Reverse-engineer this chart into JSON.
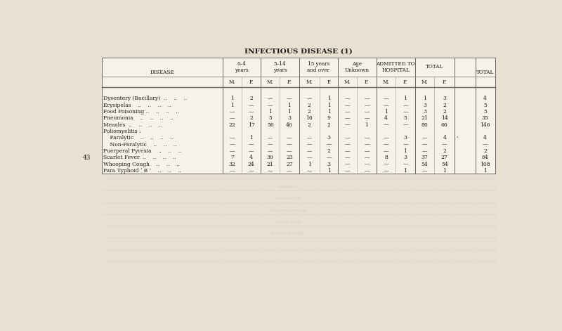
{
  "title": "INFECTIOUS DISEASE (1)",
  "page_number": "43",
  "bg_color": "#e8e0d0",
  "table_bg": "#f7f2e8",
  "col_headers_row1": [
    "DISEASE",
    "0–4\nyears",
    "5–14\nyears",
    "15 years\nand over",
    "Age\nUnknown",
    "ADMITTED TO\nHOSPITAL",
    "TOTAL",
    "TOTAL"
  ],
  "col_headers_row2_mf": [
    "M.",
    "F.",
    "M.",
    "F.",
    "M.",
    "F.",
    "M.",
    "F.",
    "M.",
    "F.",
    "M.",
    "F."
  ],
  "diseases": [
    "Dysentery (Bacillary)  ..    ..    ..",
    "Erysipelas    ..    ..    ..    ..",
    "Food Poisoning ..    ..    ..    ..",
    "Pneumonia    ..    ..    ..    ..",
    "Measles  ..    ..    ..    ..",
    "Poliomyelitis :",
    "    Paralytic    ..    ..    ..    ..",
    "    Non-Paralytic    ..    ..    ..",
    "Puerperal Pyrexia    ..    ..    ..",
    "Scarlet Fever  ..    ..    ..    ..",
    "Whooping Cough    ..    ..    ..",
    "Para Typhoid ‘ B ’    ..    ..    .."
  ],
  "data": [
    [
      "1",
      "2",
      "—",
      "—",
      "—",
      "1",
      "—",
      "—",
      "—",
      "1",
      "1",
      "3",
      "4"
    ],
    [
      "1",
      "—",
      "—",
      "1",
      "2",
      "1",
      "—",
      "—",
      "—",
      "—",
      "3",
      "2",
      "5"
    ],
    [
      "—",
      "—",
      "1",
      "1",
      "2",
      "1",
      "—",
      "—",
      "1",
      "—",
      "3",
      "2",
      "5"
    ],
    [
      "—",
      "2",
      "5",
      "3",
      "16",
      "9",
      "—",
      "—",
      "4",
      "5",
      "21",
      "14",
      "35"
    ],
    [
      "22",
      "17",
      "56",
      "46",
      "2",
      "2",
      "—",
      "1",
      "—",
      "—",
      "80",
      "66",
      "146"
    ],
    [
      null,
      null,
      null,
      null,
      null,
      null,
      null,
      null,
      null,
      null,
      null,
      null,
      null
    ],
    [
      "—",
      "1",
      "—",
      "—",
      "—",
      "3",
      "—",
      "—",
      "—",
      "3",
      "—",
      "4",
      "4"
    ],
    [
      "—",
      "—",
      "—",
      "—",
      "—",
      "—",
      "—",
      "—",
      "—",
      "—",
      "—",
      "—",
      "—"
    ],
    [
      "—",
      "—",
      "—",
      "—",
      "—",
      "2",
      "—",
      "—",
      "—",
      "1",
      "—",
      "2",
      "2"
    ],
    [
      "7",
      "4",
      "30",
      "23",
      "—",
      "—",
      "—",
      "—",
      "8",
      "3",
      "37",
      "27",
      "64"
    ],
    [
      "32",
      "24",
      "21",
      "27",
      "1",
      "3",
      "—",
      "—",
      "—",
      "—",
      "54",
      "54",
      "108"
    ],
    [
      "—",
      "—",
      "—",
      "—",
      "—",
      "1",
      "—",
      "—",
      "—",
      "1",
      "—",
      "1",
      "1"
    ]
  ],
  "ghost_lines": true,
  "title_fontsize": 7.5,
  "header_fontsize": 5.2,
  "data_fontsize": 5.5,
  "pagenumber_fontsize": 6.5
}
